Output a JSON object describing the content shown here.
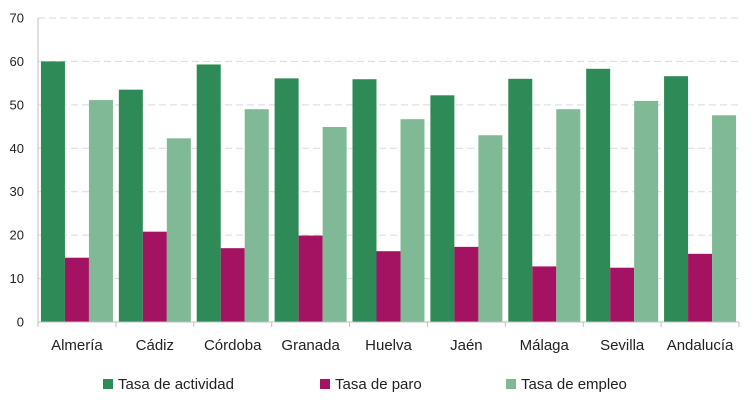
{
  "chart_data": {
    "type": "bar",
    "title": "",
    "xlabel": "",
    "ylabel": "",
    "ylim": [
      0,
      70
    ],
    "yticks": [
      0,
      10,
      20,
      30,
      40,
      50,
      60,
      70
    ],
    "grid": true,
    "legend_position": "bottom",
    "categories": [
      "Almería",
      "Cádiz",
      "Córdoba",
      "Granada",
      "Huelva",
      "Jaén",
      "Málaga",
      "Sevilla",
      "Andalucía"
    ],
    "series": [
      {
        "name": "Tasa de actividad",
        "color": "#2e8b57",
        "values": [
          60.0,
          53.5,
          59.3,
          56.1,
          55.9,
          52.2,
          56.0,
          58.3,
          56.6
        ]
      },
      {
        "name": "Tasa de paro",
        "color": "#a31362",
        "values": [
          14.8,
          20.8,
          17.0,
          19.9,
          16.3,
          17.3,
          12.8,
          12.5,
          15.7
        ]
      },
      {
        "name": "Tasa de empleo",
        "color": "#80b995",
        "values": [
          51.1,
          42.3,
          49.0,
          44.9,
          46.7,
          43.0,
          49.0,
          50.9,
          47.6
        ]
      }
    ]
  }
}
